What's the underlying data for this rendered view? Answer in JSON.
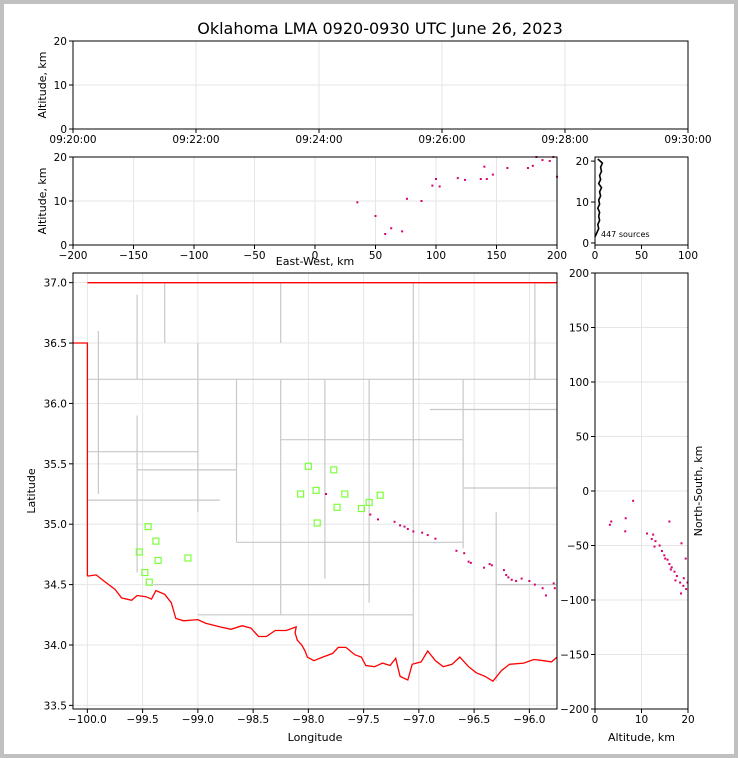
{
  "title": "Oklahoma LMA 0920-0930 UTC June 26, 2023",
  "colors": {
    "background": "#ffffff",
    "border": "#c0c0c0",
    "state_border": "#ff0000",
    "county_lines": "#c8c8c8",
    "sources": "#d6006e",
    "stations": "#7cff3a",
    "grid": "#e6e6e6"
  },
  "chart_data": [
    {
      "id": "time_height",
      "type": "scatter",
      "xlabel": "",
      "ylabel": "Altitude, km",
      "x_ticks": [
        "09:20:00",
        "09:22:00",
        "09:24:00",
        "09:26:00",
        "09:28:00",
        "09:30:00"
      ],
      "x_range": [
        "09:20:00",
        "09:30:00"
      ],
      "y_ticks": [
        0,
        10,
        20
      ],
      "ylim": [
        0,
        20
      ],
      "grid": true,
      "points": []
    },
    {
      "id": "ew_height",
      "type": "scatter",
      "xlabel": "East-West, km",
      "ylabel": "Altitude, km",
      "x_ticks": [
        -200,
        -150,
        -100,
        -50,
        0,
        50,
        100,
        150,
        200
      ],
      "xlim": [
        -200,
        200
      ],
      "y_ticks": [
        0,
        10,
        20
      ],
      "ylim": [
        0,
        20
      ],
      "grid": true,
      "points": [
        [
          35,
          9.7
        ],
        [
          50,
          6.6
        ],
        [
          58,
          2.5
        ],
        [
          63,
          3.8
        ],
        [
          72,
          3.1
        ],
        [
          76,
          10.5
        ],
        [
          88,
          10.0
        ],
        [
          97,
          13.5
        ],
        [
          100,
          15.0
        ],
        [
          103,
          13.3
        ],
        [
          118,
          15.2
        ],
        [
          124,
          14.8
        ],
        [
          137,
          15.0
        ],
        [
          140,
          17.8
        ],
        [
          142,
          15.0
        ],
        [
          147,
          16.0
        ],
        [
          159,
          17.5
        ],
        [
          176,
          17.5
        ],
        [
          180,
          18.0
        ],
        [
          183,
          20.0
        ],
        [
          188,
          19.3
        ],
        [
          194,
          19.1
        ],
        [
          197,
          20.0
        ],
        [
          200,
          15.5
        ]
      ]
    },
    {
      "id": "altitude_histogram",
      "type": "line",
      "xlabel": "",
      "ylabel": "",
      "x_ticks": [
        0,
        50,
        100
      ],
      "xlim": [
        0,
        100
      ],
      "y_ticks": [
        0,
        10,
        20
      ],
      "ylim": [
        -0.5,
        21
      ],
      "annotation": "447 sources",
      "profile": [
        [
          0,
          1.5
        ],
        [
          2,
          2.5
        ],
        [
          4,
          3.5
        ],
        [
          3,
          4.5
        ],
        [
          5,
          5.5
        ],
        [
          4,
          6.5
        ],
        [
          5,
          7.5
        ],
        [
          3,
          8.5
        ],
        [
          5,
          9.5
        ],
        [
          4,
          10.5
        ],
        [
          6,
          11.5
        ],
        [
          5,
          12.5
        ],
        [
          7,
          13.5
        ],
        [
          4,
          14.5
        ],
        [
          6,
          15.5
        ],
        [
          5,
          16.5
        ],
        [
          7,
          17.5
        ],
        [
          6,
          18.5
        ],
        [
          8,
          19.5
        ],
        [
          3,
          20.5
        ]
      ]
    },
    {
      "id": "plan_view",
      "type": "scatter",
      "xlabel": "Longitude",
      "ylabel": "Latitude",
      "x_ticks": [
        -100.0,
        -99.5,
        -99.0,
        -98.5,
        -98.0,
        -97.5,
        -97.0,
        -96.5,
        -96.0
      ],
      "xlim": [
        -100.13,
        -95.75
      ],
      "y_ticks": [
        33.5,
        34.0,
        34.5,
        35.0,
        35.5,
        36.0,
        36.5,
        37.0
      ],
      "ylim": [
        33.47,
        37.08
      ],
      "grid": true,
      "stations": [
        [
          -98.0,
          35.48
        ],
        [
          -97.77,
          35.45
        ],
        [
          -97.93,
          35.28
        ],
        [
          -98.07,
          35.25
        ],
        [
          -97.67,
          35.25
        ],
        [
          -97.35,
          35.24
        ],
        [
          -97.45,
          35.18
        ],
        [
          -97.52,
          35.13
        ],
        [
          -97.74,
          35.14
        ],
        [
          -97.92,
          35.01
        ],
        [
          -99.45,
          34.98
        ],
        [
          -99.38,
          34.86
        ],
        [
          -99.53,
          34.77
        ],
        [
          -99.36,
          34.7
        ],
        [
          -99.09,
          34.72
        ],
        [
          -99.48,
          34.6
        ],
        [
          -99.44,
          34.52
        ]
      ],
      "sources": [
        [
          -97.84,
          35.25
        ],
        [
          -97.44,
          35.08
        ],
        [
          -97.37,
          35.04
        ],
        [
          -97.22,
          35.02
        ],
        [
          -97.17,
          34.99
        ],
        [
          -97.13,
          34.98
        ],
        [
          -97.1,
          34.96
        ],
        [
          -97.05,
          34.94
        ],
        [
          -96.97,
          34.93
        ],
        [
          -96.92,
          34.91
        ],
        [
          -96.85,
          34.88
        ],
        [
          -96.66,
          34.78
        ],
        [
          -96.59,
          34.76
        ],
        [
          -96.55,
          34.69
        ],
        [
          -96.53,
          34.68
        ],
        [
          -96.41,
          34.64
        ],
        [
          -96.36,
          34.67
        ],
        [
          -96.34,
          34.66
        ],
        [
          -96.23,
          34.62
        ],
        [
          -96.21,
          34.58
        ],
        [
          -96.19,
          34.56
        ],
        [
          -96.16,
          34.54
        ],
        [
          -96.12,
          34.53
        ],
        [
          -96.07,
          34.55
        ],
        [
          -96.0,
          34.53
        ],
        [
          -95.95,
          34.5
        ],
        [
          -95.88,
          34.47
        ],
        [
          -95.85,
          34.41
        ],
        [
          -95.78,
          34.51
        ],
        [
          -95.77,
          34.47
        ]
      ]
    },
    {
      "id": "ns_height",
      "type": "scatter",
      "xlabel": "Altitude, km",
      "ylabel": "North-South, km",
      "x_ticks": [
        0,
        10,
        20
      ],
      "xlim": [
        0,
        20
      ],
      "y_ticks": [
        -200,
        -150,
        -100,
        -50,
        0,
        50,
        100,
        150,
        200
      ],
      "ylim": [
        -200,
        200
      ],
      "grid": true,
      "points": [
        [
          8.2,
          -9
        ],
        [
          3.5,
          -28
        ],
        [
          3.2,
          -31
        ],
        [
          6.6,
          -25
        ],
        [
          6.5,
          -37
        ],
        [
          11.2,
          -39
        ],
        [
          12.5,
          -40
        ],
        [
          12.2,
          -44
        ],
        [
          13.0,
          -46
        ],
        [
          12.8,
          -51
        ],
        [
          13.9,
          -50
        ],
        [
          14.4,
          -55
        ],
        [
          14.9,
          -59
        ],
        [
          15.1,
          -62
        ],
        [
          15.6,
          -63
        ],
        [
          16.0,
          -67
        ],
        [
          16.5,
          -70
        ],
        [
          16.3,
          -72
        ],
        [
          17.1,
          -74
        ],
        [
          17.6,
          -78
        ],
        [
          17.3,
          -82
        ],
        [
          18.3,
          -84
        ],
        [
          19.1,
          -80
        ],
        [
          19.0,
          -87
        ],
        [
          19.6,
          -90
        ],
        [
          18.5,
          -94
        ],
        [
          19.9,
          -84
        ],
        [
          16.0,
          -28
        ],
        [
          18.6,
          -48
        ],
        [
          19.5,
          -62
        ]
      ]
    }
  ],
  "map_lines": {
    "state_border": [
      [
        -100.0,
        37.0
      ],
      [
        -95.75,
        37.0
      ]
    ],
    "panhandle_border": [
      [
        -100.13,
        36.5
      ],
      [
        -100.0,
        36.5
      ],
      [
        -100.0,
        34.57
      ]
    ],
    "red_river": [
      [
        -100.0,
        34.57
      ],
      [
        -99.92,
        34.58
      ],
      [
        -99.85,
        34.53
      ],
      [
        -99.75,
        34.46
      ],
      [
        -99.69,
        34.39
      ],
      [
        -99.6,
        34.37
      ],
      [
        -99.55,
        34.41
      ],
      [
        -99.47,
        34.4
      ],
      [
        -99.42,
        34.38
      ],
      [
        -99.38,
        34.45
      ],
      [
        -99.3,
        34.42
      ],
      [
        -99.24,
        34.35
      ],
      [
        -99.2,
        34.22
      ],
      [
        -99.13,
        34.2
      ],
      [
        -99.0,
        34.21
      ],
      [
        -98.93,
        34.18
      ],
      [
        -98.8,
        34.15
      ],
      [
        -98.7,
        34.13
      ],
      [
        -98.6,
        34.16
      ],
      [
        -98.52,
        34.14
      ],
      [
        -98.45,
        34.07
      ],
      [
        -98.38,
        34.07
      ],
      [
        -98.3,
        34.12
      ],
      [
        -98.2,
        34.12
      ],
      [
        -98.11,
        34.15
      ],
      [
        -98.12,
        34.1
      ],
      [
        -98.1,
        34.04
      ],
      [
        -98.06,
        34.0
      ],
      [
        -98.03,
        33.95
      ],
      [
        -98.01,
        33.9
      ],
      [
        -97.95,
        33.87
      ],
      [
        -97.87,
        33.9
      ],
      [
        -97.78,
        33.93
      ],
      [
        -97.73,
        33.98
      ],
      [
        -97.66,
        33.98
      ],
      [
        -97.58,
        33.92
      ],
      [
        -97.52,
        33.9
      ],
      [
        -97.48,
        33.83
      ],
      [
        -97.4,
        33.82
      ],
      [
        -97.33,
        33.85
      ],
      [
        -97.26,
        33.83
      ],
      [
        -97.21,
        33.89
      ],
      [
        -97.17,
        33.74
      ],
      [
        -97.1,
        33.71
      ],
      [
        -97.06,
        33.84
      ],
      [
        -96.98,
        33.86
      ],
      [
        -96.92,
        33.95
      ],
      [
        -96.85,
        33.87
      ],
      [
        -96.78,
        33.82
      ],
      [
        -96.7,
        33.84
      ],
      [
        -96.63,
        33.9
      ],
      [
        -96.55,
        33.82
      ],
      [
        -96.48,
        33.77
      ],
      [
        -96.4,
        33.74
      ],
      [
        -96.33,
        33.7
      ],
      [
        -96.25,
        33.79
      ],
      [
        -96.18,
        33.84
      ],
      [
        -96.05,
        33.85
      ],
      [
        -95.96,
        33.88
      ],
      [
        -95.87,
        33.87
      ],
      [
        -95.8,
        33.86
      ],
      [
        -95.75,
        33.9
      ]
    ],
    "county_lines": [
      [
        [
          -99.9,
          36.6
        ],
        [
          -99.9,
          35.25
        ]
      ],
      [
        [
          -99.0,
          36.5
        ],
        [
          -99.0,
          35.1
        ]
      ],
      [
        [
          -100.0,
          35.6
        ],
        [
          -99.0,
          35.6
        ]
      ],
      [
        [
          -100.0,
          35.2
        ],
        [
          -98.8,
          35.2
        ]
      ],
      [
        [
          -99.55,
          35.9
        ],
        [
          -99.55,
          34.6
        ]
      ],
      [
        [
          -99.55,
          35.45
        ],
        [
          -98.65,
          35.45
        ]
      ],
      [
        [
          -98.65,
          36.2
        ],
        [
          -98.65,
          34.85
        ]
      ],
      [
        [
          -98.25,
          36.2
        ],
        [
          -98.25,
          34.25
        ]
      ],
      [
        [
          -98.25,
          35.7
        ],
        [
          -96.6,
          35.7
        ]
      ],
      [
        [
          -97.85,
          36.2
        ],
        [
          -97.85,
          34.55
        ]
      ],
      [
        [
          -97.45,
          36.2
        ],
        [
          -97.45,
          34.35
        ]
      ],
      [
        [
          -97.05,
          36.5
        ],
        [
          -97.05,
          33.85
        ]
      ],
      [
        [
          -96.6,
          36.2
        ],
        [
          -96.6,
          34.8
        ]
      ],
      [
        [
          -98.65,
          34.85
        ],
        [
          -96.6,
          34.85
        ]
      ],
      [
        [
          -99.0,
          34.25
        ],
        [
          -97.05,
          34.25
        ]
      ],
      [
        [
          -99.4,
          34.5
        ],
        [
          -97.45,
          34.5
        ]
      ],
      [
        [
          -96.6,
          35.3
        ],
        [
          -95.75,
          35.3
        ]
      ],
      [
        [
          -96.3,
          35.1
        ],
        [
          -96.3,
          33.7
        ]
      ],
      [
        [
          -96.3,
          34.5
        ],
        [
          -95.75,
          34.5
        ]
      ],
      [
        [
          -98.25,
          36.5
        ],
        [
          -98.25,
          37.0
        ]
      ],
      [
        [
          -99.3,
          36.5
        ],
        [
          -99.3,
          37.0
        ]
      ],
      [
        [
          -97.05,
          36.5
        ],
        [
          -97.05,
          37.0
        ]
      ],
      [
        [
          -95.95,
          36.2
        ],
        [
          -95.95,
          37.0
        ]
      ],
      [
        [
          -100.0,
          36.2
        ],
        [
          -95.75,
          36.2
        ]
      ],
      [
        [
          -99.55,
          36.2
        ],
        [
          -99.55,
          36.9
        ]
      ],
      [
        [
          -96.9,
          35.95
        ],
        [
          -95.75,
          35.95
        ]
      ]
    ]
  }
}
